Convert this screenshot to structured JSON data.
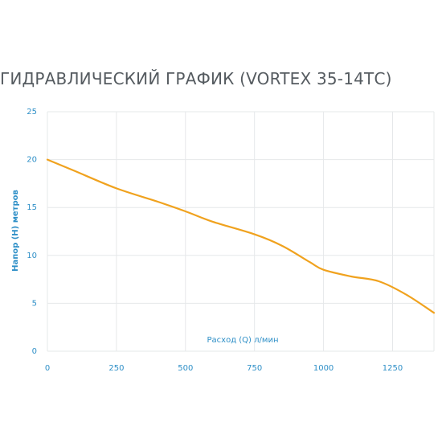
{
  "title_text": "ГИДРАВЛИЧЕСКИЙ ГРАФИК (VORTEX 35-14ТС)",
  "colors": {
    "curve": "#f0a21e",
    "tick": "#2e8fc7",
    "grid": "#e6e8ea",
    "title": "#555b60"
  },
  "chart_data": {
    "type": "line",
    "title": "ГИДРАВЛИЧЕСКИЙ ГРАФИК (VORTEX 35-14ТС)",
    "xlabel": "Расход (Q) л/мин",
    "ylabel": "Напор (Н) метров",
    "xlim": [
      0,
      1400
    ],
    "ylim": [
      0,
      25
    ],
    "x_ticks": [
      "0",
      "250",
      "500",
      "750",
      "1000",
      "1250"
    ],
    "y_ticks": [
      "0",
      "5",
      "10",
      "15",
      "20",
      "25"
    ],
    "grid": true,
    "series": [
      {
        "x": [
          0,
          100,
          250,
          400,
          500,
          600,
          750,
          850,
          950,
          1000,
          1100,
          1200,
          1300,
          1400
        ],
        "y": [
          20,
          18.8,
          17,
          15.6,
          14.6,
          13.5,
          12.2,
          11,
          9.3,
          8.5,
          7.8,
          7.3,
          5.9,
          4
        ]
      }
    ]
  }
}
